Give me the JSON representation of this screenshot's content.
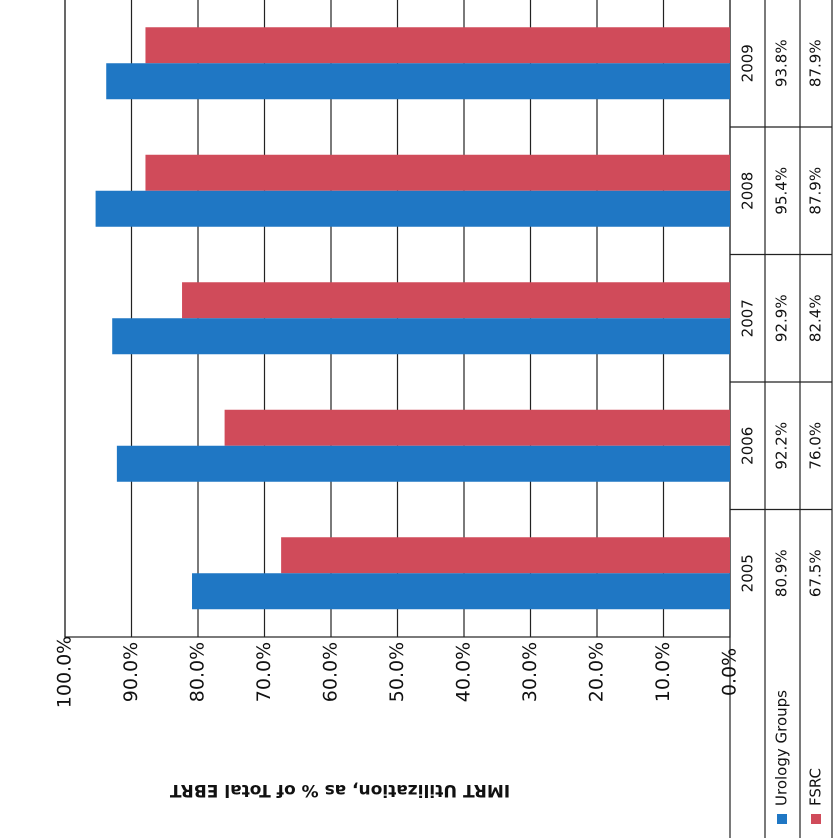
{
  "chart_data": {
    "type": "bar",
    "orientation": "horizontal",
    "y_label": "IMRT Utilization, as % of Total EBRT",
    "categories": [
      "2005",
      "2006",
      "2007",
      "2008",
      "2009"
    ],
    "series": [
      {
        "name": "Urology Groups",
        "color": "#1f77c4",
        "values": [
          80.9,
          92.2,
          92.9,
          95.4,
          93.8
        ],
        "value_labels": [
          "80.9%",
          "92.2%",
          "92.9%",
          "95.4%",
          "93.8%"
        ]
      },
      {
        "name": "FSRC",
        "color": "#d04b5a",
        "values": [
          67.5,
          76.0,
          82.4,
          87.9,
          87.9
        ],
        "value_labels": [
          "67.5%",
          "76.0%",
          "82.4%",
          "87.9%",
          "87.9%"
        ]
      }
    ],
    "ylim": [
      0,
      100
    ],
    "yticks": [
      {
        "value": 0,
        "label": "0.0%"
      },
      {
        "value": 10,
        "label": "10.0%"
      },
      {
        "value": 20,
        "label": "20.0%"
      },
      {
        "value": 30,
        "label": "30.0%"
      },
      {
        "value": 40,
        "label": "40.0%"
      },
      {
        "value": 50,
        "label": "50.0%"
      },
      {
        "value": 60,
        "label": "60.0%"
      },
      {
        "value": 70,
        "label": "70.0%"
      },
      {
        "value": 80,
        "label": "80.0%"
      },
      {
        "value": 90,
        "label": "90.0%"
      },
      {
        "value": 100,
        "label": "100.0%"
      }
    ],
    "grid": true
  }
}
